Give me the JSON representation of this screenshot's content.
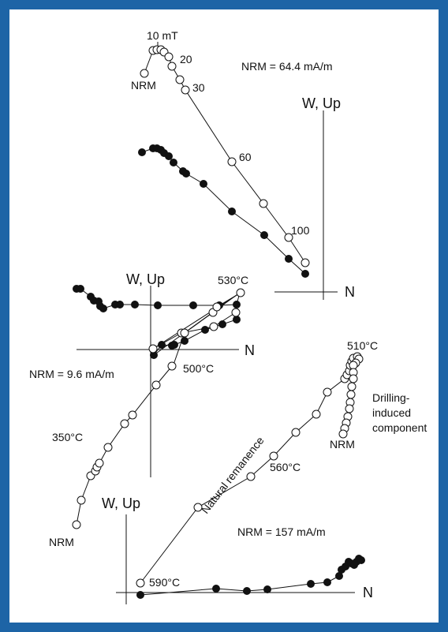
{
  "colors": {
    "frame": "#1d64a6",
    "ink": "#111111",
    "open_symbol_fill": "#ffffff",
    "filled_symbol": "#111111"
  },
  "diagrams": [
    {
      "id": "top",
      "axis_label": "W, Up",
      "axis_label_n": "N",
      "nrm_text": "NRM = 64.4 mA/m",
      "step_labels": [
        "10 mT",
        "20",
        "30",
        "60",
        "100",
        "NRM"
      ]
    },
    {
      "id": "middle",
      "axis_label": "W, Up",
      "axis_label_n": "N",
      "nrm_text": "NRM = 9.6 mA/m",
      "step_labels": [
        "530°C",
        "500°C",
        "350°C",
        "NRM"
      ]
    },
    {
      "id": "bottom",
      "axis_label": "W, Up",
      "axis_label_n": "N",
      "nrm_text": "NRM = 157 mA/m",
      "step_labels": [
        "510°C",
        "560°C",
        "590°C",
        "NRM"
      ],
      "annotations": [
        "Drilling-",
        "induced",
        "component",
        "Natural remanence"
      ]
    }
  ]
}
